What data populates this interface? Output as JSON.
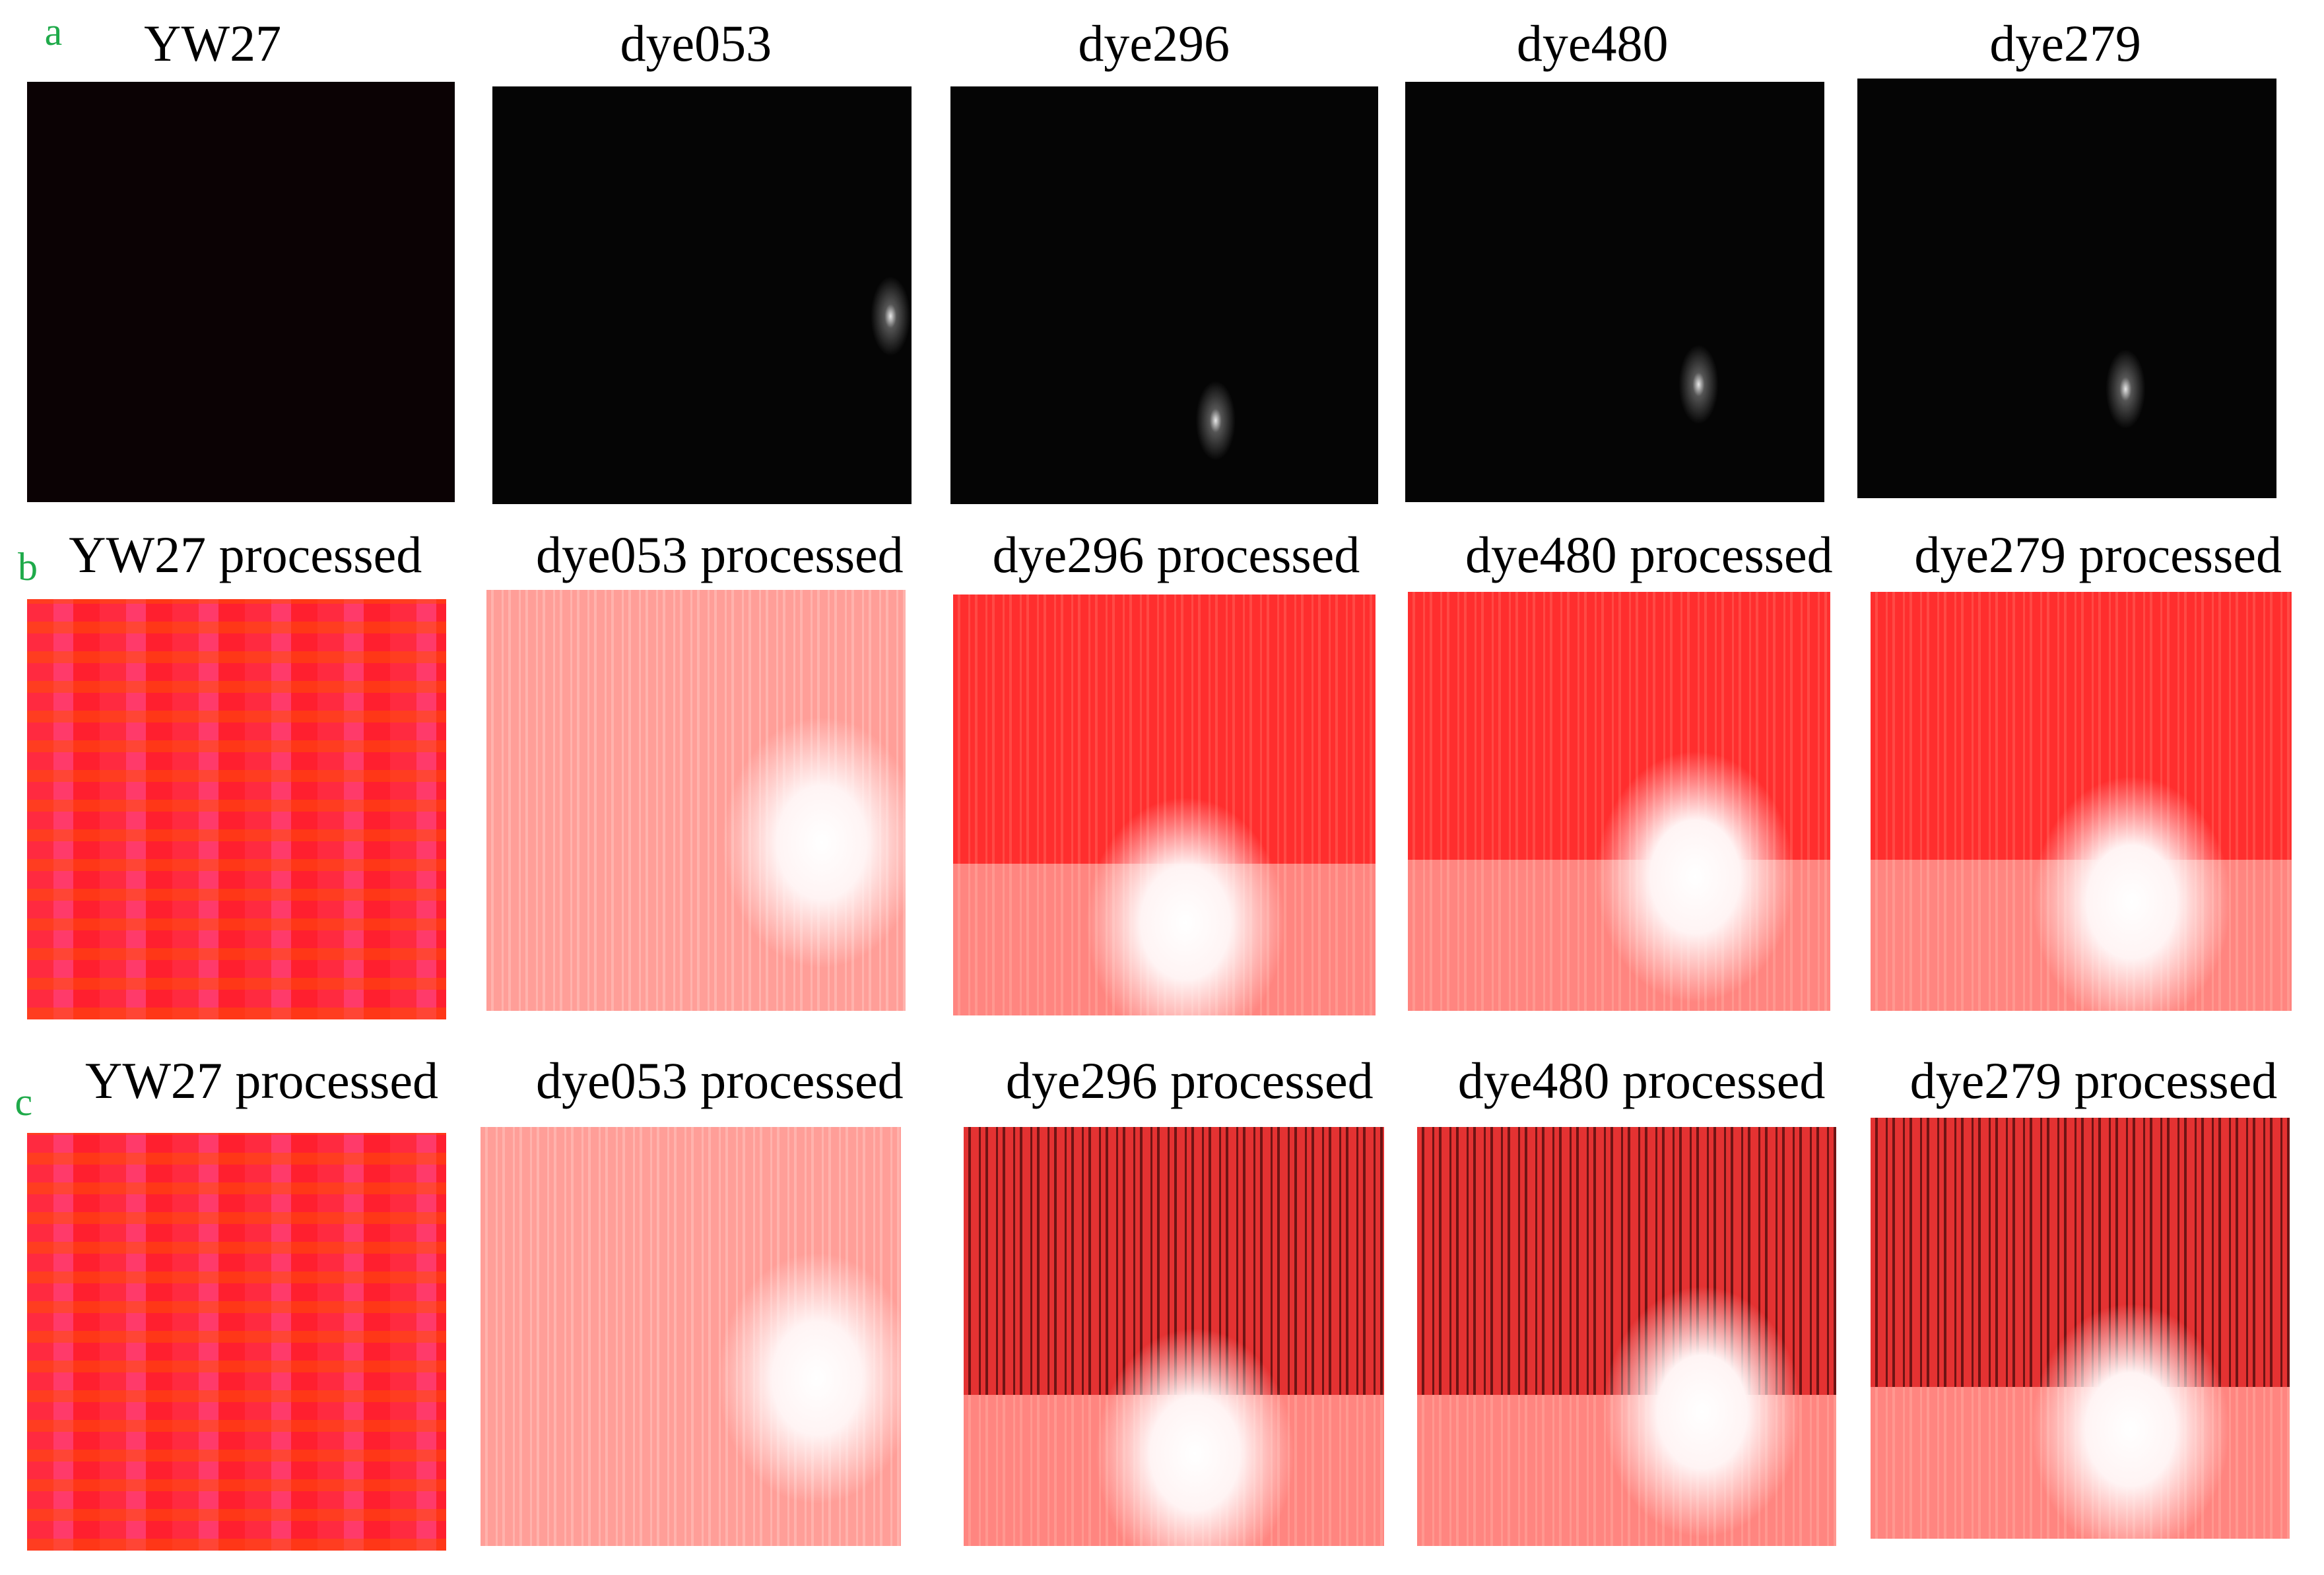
{
  "rows": [
    {
      "label": "a",
      "panels": [
        {
          "title": "YW27"
        },
        {
          "title": "dye053"
        },
        {
          "title": "dye296"
        },
        {
          "title": "dye480"
        },
        {
          "title": "dye279"
        }
      ]
    },
    {
      "label": "b",
      "panels": [
        {
          "title": "YW27 processed"
        },
        {
          "title": "dye053 processed"
        },
        {
          "title": "dye296 processed"
        },
        {
          "title": "dye480 processed"
        },
        {
          "title": "dye279 processed"
        }
      ]
    },
    {
      "label": "c",
      "panels": [
        {
          "title": "YW27 processed"
        },
        {
          "title": "dye053 processed"
        },
        {
          "title": "dye296 processed"
        },
        {
          "title": "dye480 processed"
        },
        {
          "title": "dye279 processed"
        }
      ]
    }
  ]
}
